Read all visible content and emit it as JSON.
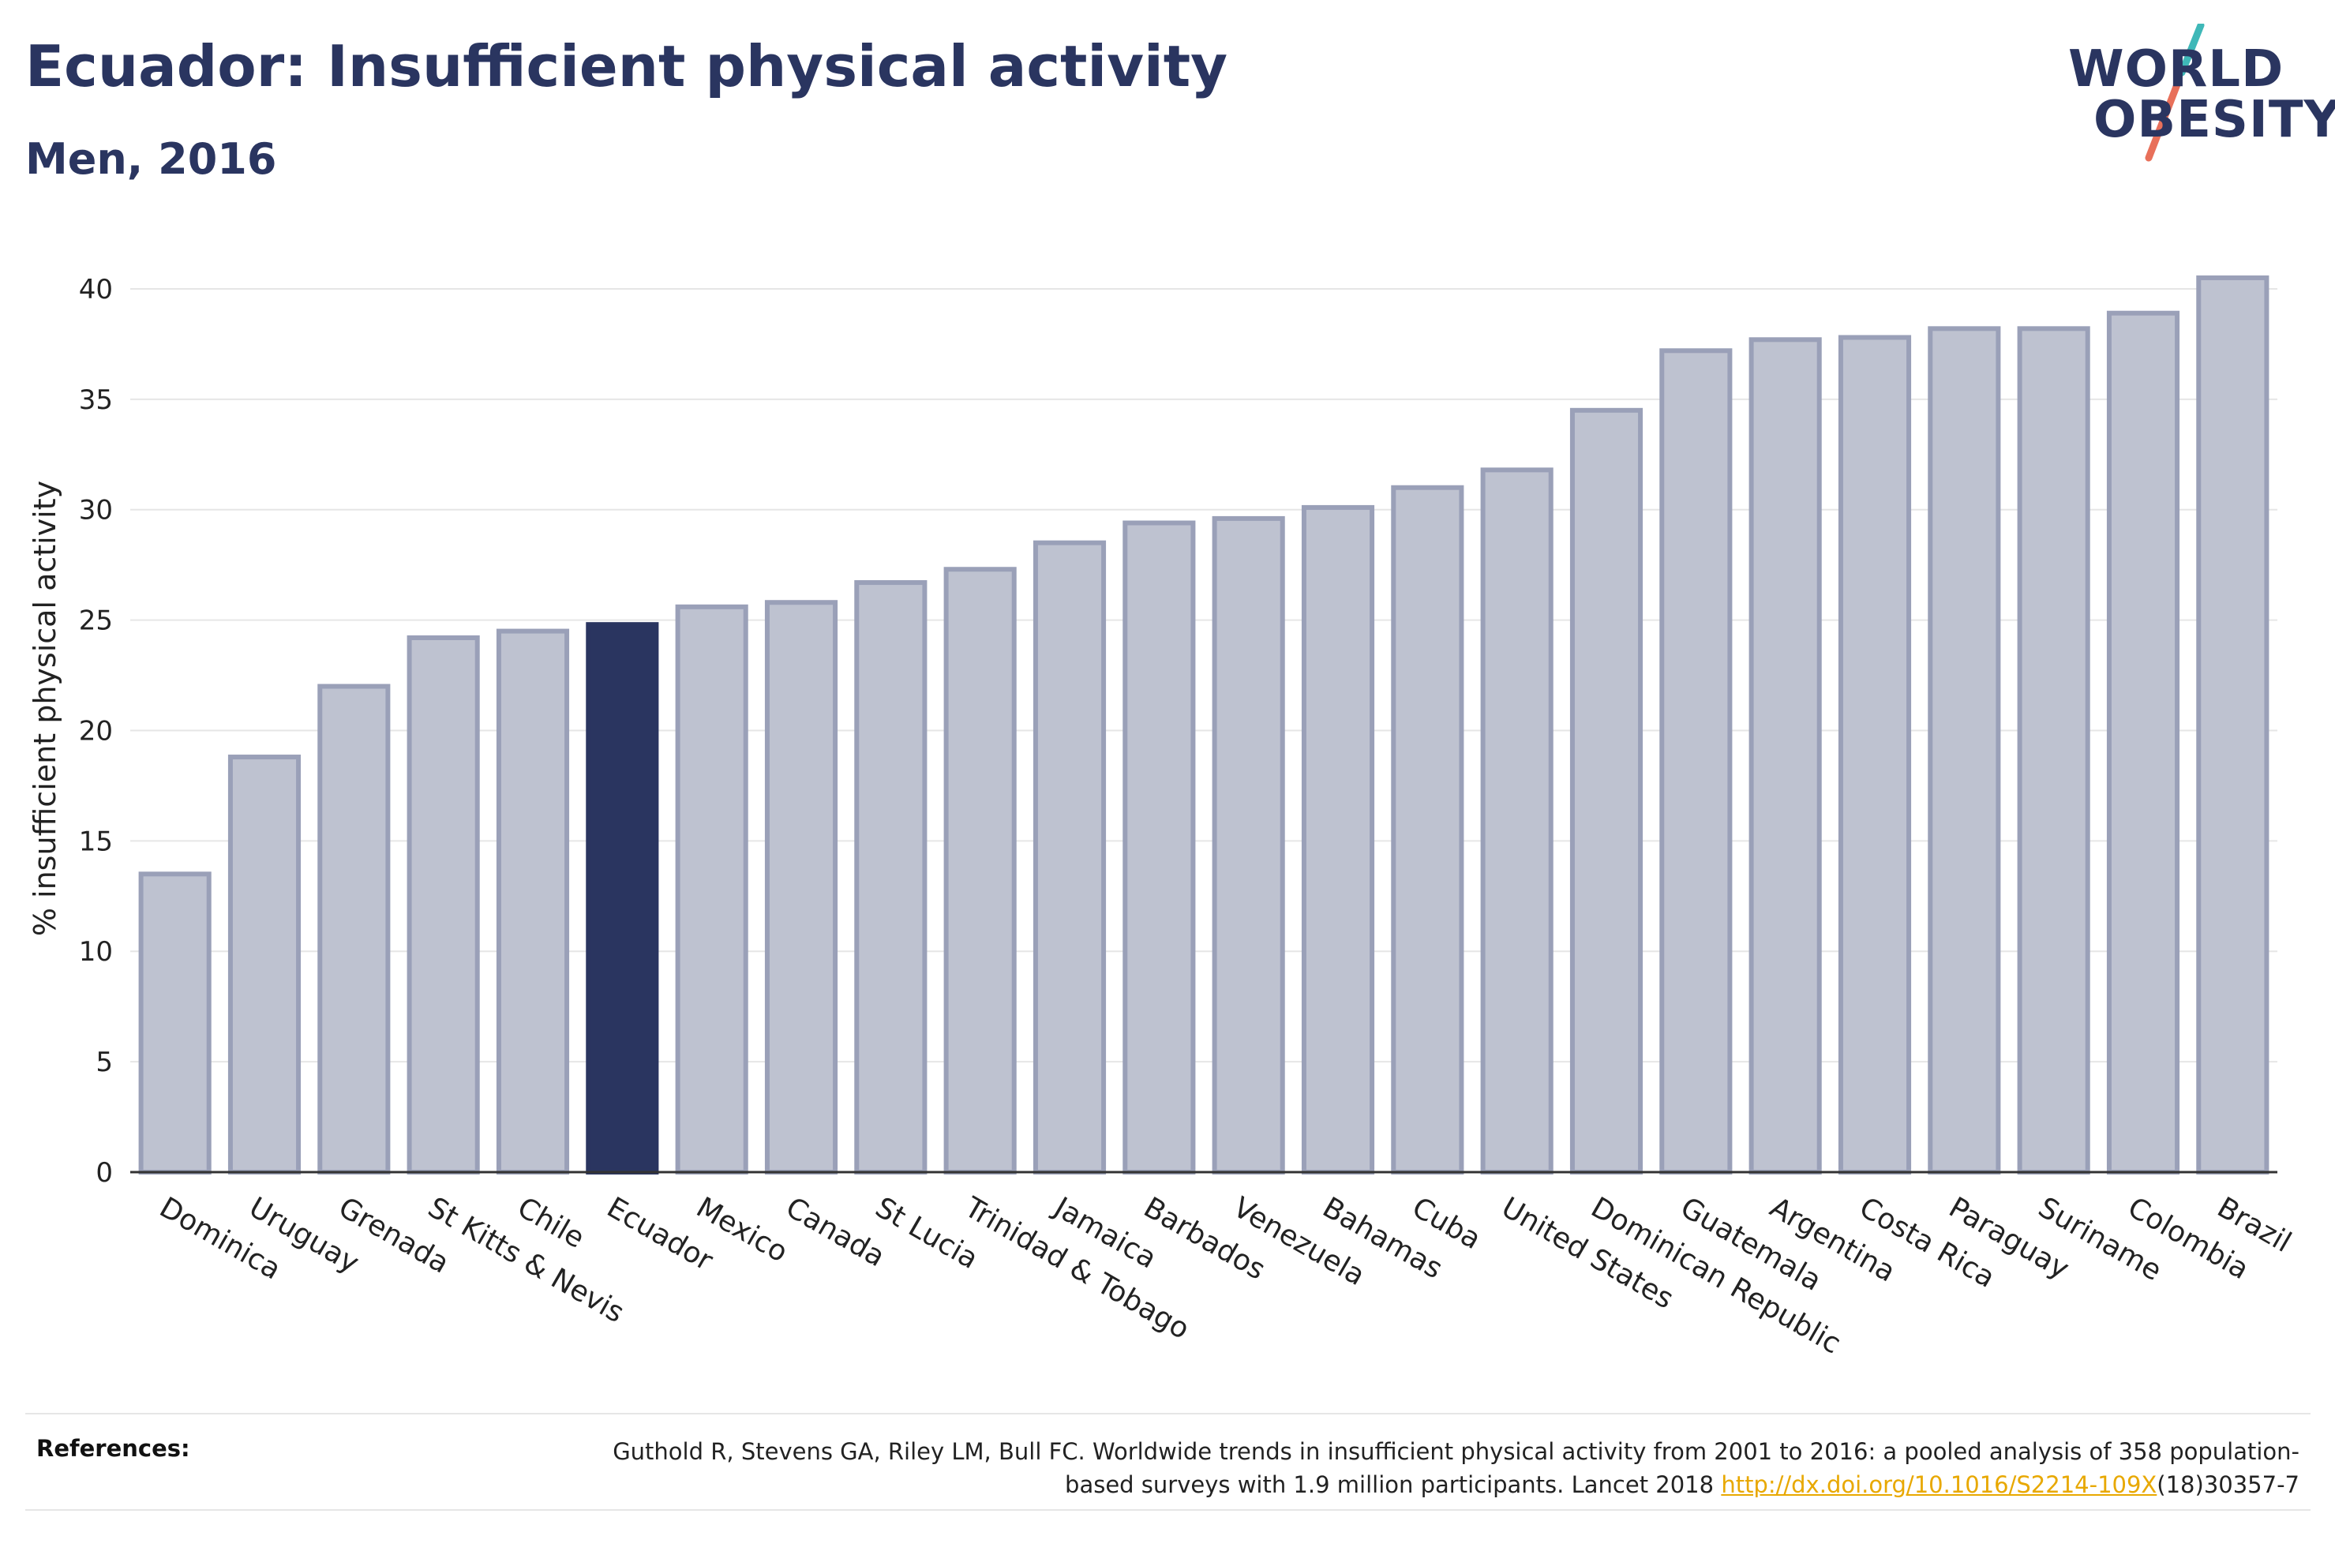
{
  "header": {
    "title": "Ecuador: Insufficient physical activity",
    "subtitle": "Men, 2016"
  },
  "logo": {
    "line1": "WORLD",
    "line2": "OBESITY",
    "colors": {
      "text": "#2a3560",
      "slash_top": "#3fb8b8",
      "slash_bottom": "#e8705a"
    }
  },
  "chart_data": {
    "type": "bar",
    "title": "Ecuador: Insufficient physical activity",
    "subtitle": "Men, 2016",
    "xlabel": "",
    "ylabel": "% insufficient physical activity",
    "ylim": [
      0,
      42
    ],
    "yticks": [
      0,
      5,
      10,
      15,
      20,
      25,
      30,
      35,
      40
    ],
    "grid": true,
    "highlight": "Ecuador",
    "colors": {
      "bar": "#bec2d0",
      "bar_outline": "#9aa0b8",
      "highlight": "#2a3560",
      "grid": "#e6e6e6",
      "axis": "#333333"
    },
    "categories": [
      "Dominica",
      "Uruguay",
      "Grenada",
      "St Kitts & Nevis",
      "Chile",
      "Ecuador",
      "Mexico",
      "Canada",
      "St Lucia",
      "Trinidad & Tobago",
      "Jamaica",
      "Barbados",
      "Venezuela",
      "Bahamas",
      "Cuba",
      "United States",
      "Dominican Republic",
      "Guatemala",
      "Argentina",
      "Costa Rica",
      "Paraguay",
      "Suriname",
      "Colombia",
      "Brazil"
    ],
    "values": [
      13.5,
      18.8,
      22.0,
      24.2,
      24.5,
      24.8,
      25.6,
      25.8,
      26.7,
      27.3,
      28.5,
      29.4,
      29.6,
      30.1,
      31.0,
      31.8,
      34.5,
      37.2,
      37.7,
      37.8,
      38.2,
      38.2,
      38.9,
      40.5
    ]
  },
  "references": {
    "label": "References:",
    "text_before": "Guthold R, Stevens GA, Riley LM, Bull FC. Worldwide trends in insufficient physical activity from 2001 to 2016: a pooled analysis of 358 population-based surveys with 1.9 million participants. Lancet 2018 ",
    "link": "http://dx.doi.org/10.1016/S2214-109X",
    "text_after": "(18)30357-7"
  }
}
